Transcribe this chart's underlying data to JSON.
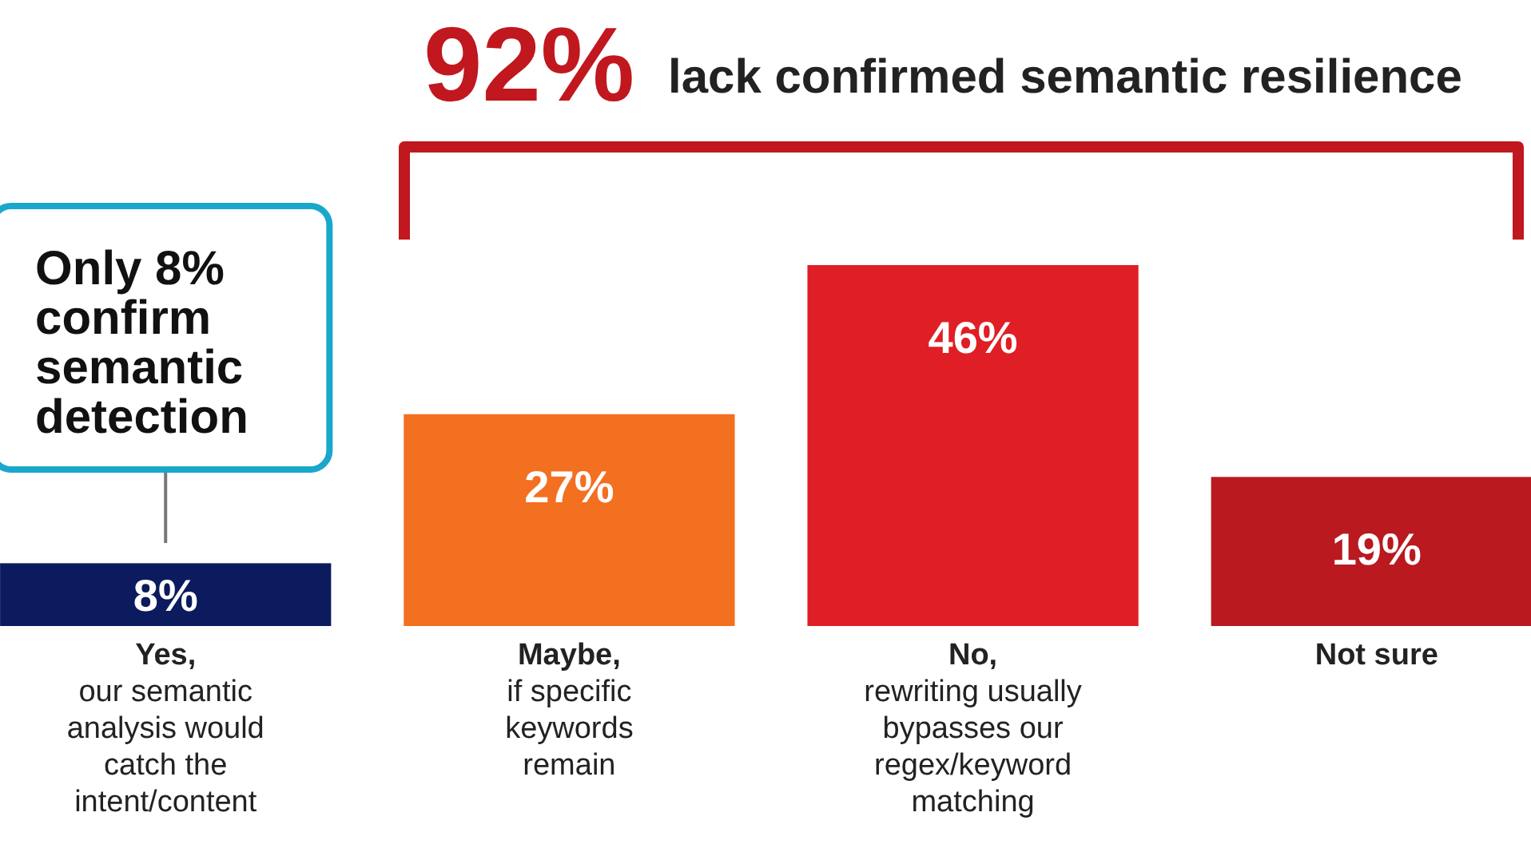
{
  "chart_data": {
    "type": "bar",
    "categories": [
      "Yes,\nour semantic\nanalysis would\ncatch the\nintent/content",
      "Maybe,\nif specific\nkeywords\nremain",
      "No,\nrewriting usually\nbypasses our\nregex/keyword\nmatching",
      "Not sure"
    ],
    "values": [
      8,
      27,
      46,
      19
    ],
    "colors": [
      "#0b1b5e",
      "#f37021",
      "#e01e25",
      "#b9191f"
    ],
    "data_labels": true,
    "value_labels": [
      "8%",
      "27%",
      "46%",
      "19%"
    ],
    "annotations": [
      "92% lack confirmed semantic resilience",
      "Only 8%\nconfirm\nsemantic\ndetection"
    ]
  }
}
